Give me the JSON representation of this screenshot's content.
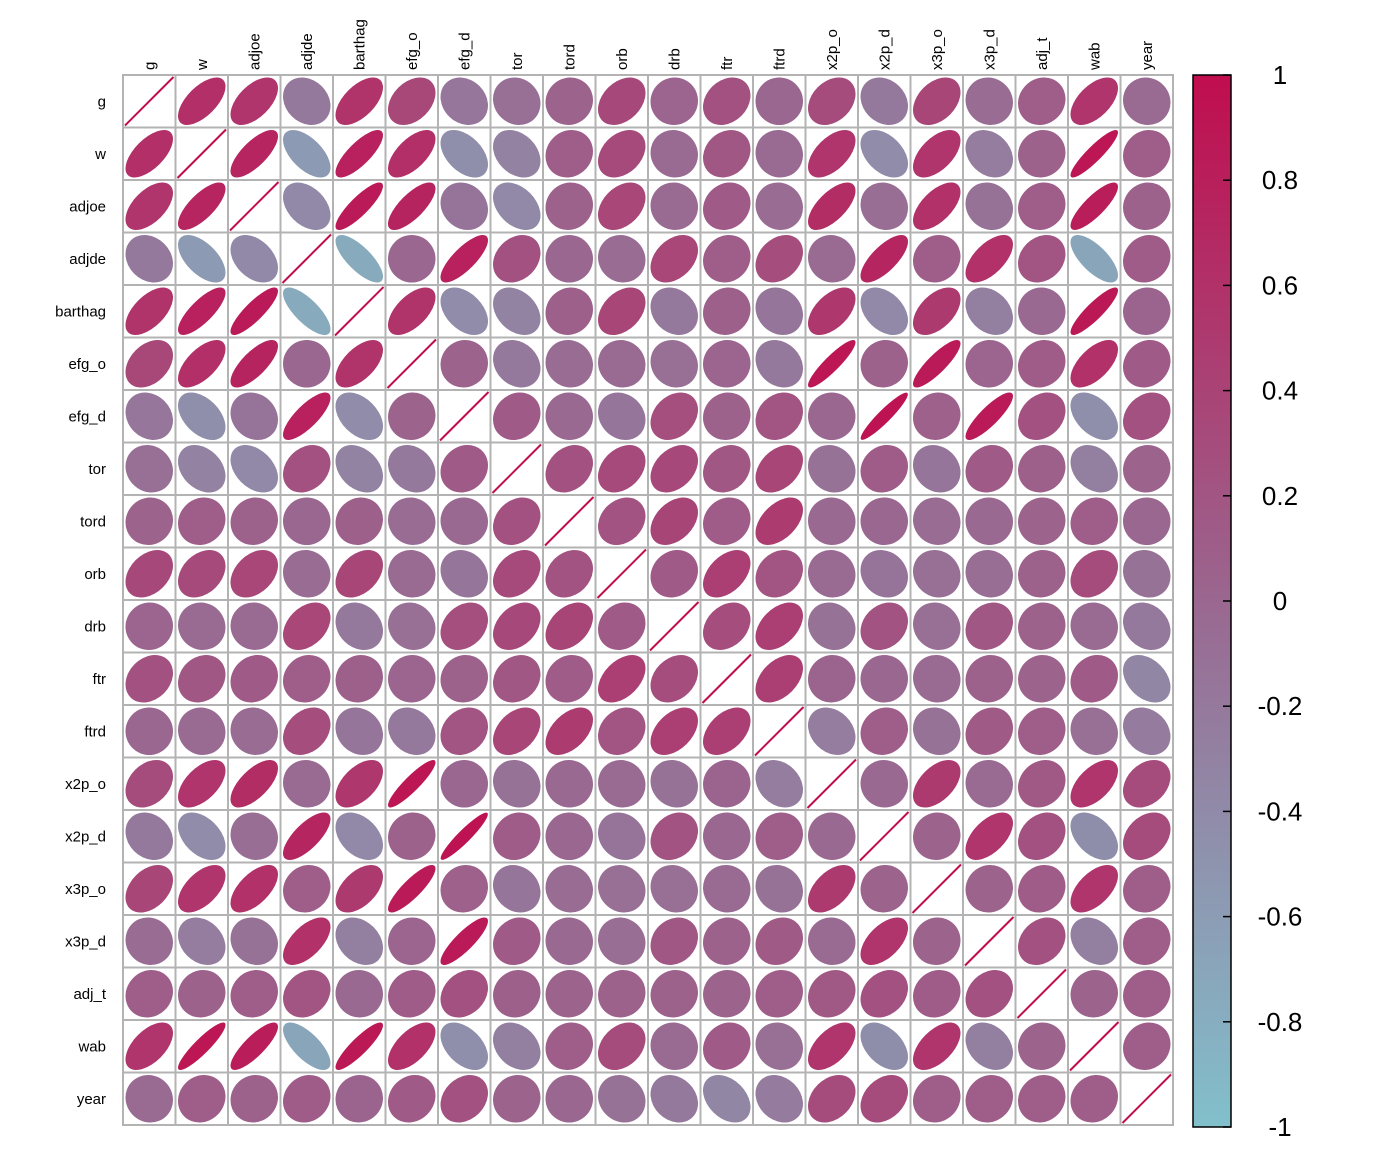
{
  "chart_data": {
    "type": "heatmap",
    "title": "",
    "variables": [
      "g",
      "w",
      "adjoe",
      "adjde",
      "barthag",
      "efg_o",
      "efg_d",
      "tor",
      "tord",
      "orb",
      "drb",
      "ftr",
      "ftrd",
      "x2p_o",
      "x2p_d",
      "x3p_o",
      "x3p_d",
      "adj_t",
      "wab",
      "year"
    ],
    "matrix": [
      [
        1,
        0.62,
        0.55,
        -0.2,
        0.58,
        0.35,
        -0.18,
        -0.1,
        0.05,
        0.34,
        0.02,
        0.24,
        0.0,
        0.3,
        -0.2,
        0.37,
        -0.06,
        0.1,
        0.55,
        -0.05
      ],
      [
        0.62,
        1,
        0.73,
        -0.58,
        0.78,
        0.62,
        -0.45,
        -0.3,
        0.1,
        0.32,
        -0.05,
        0.18,
        -0.05,
        0.55,
        -0.42,
        0.55,
        -0.25,
        0.06,
        0.9,
        0.1
      ],
      [
        0.55,
        0.73,
        1,
        -0.38,
        0.85,
        0.74,
        -0.15,
        -0.38,
        0.06,
        0.36,
        -0.03,
        0.14,
        -0.06,
        0.65,
        -0.08,
        0.6,
        -0.12,
        0.1,
        0.82,
        0.06
      ],
      [
        -0.2,
        -0.58,
        -0.38,
        1,
        -0.75,
        0.0,
        0.78,
        0.24,
        0.0,
        -0.06,
        0.36,
        0.1,
        0.28,
        -0.05,
        0.72,
        0.1,
        0.6,
        0.2,
        -0.7,
        0.12
      ],
      [
        0.58,
        0.78,
        0.85,
        -0.75,
        1,
        0.58,
        -0.42,
        -0.32,
        0.08,
        0.37,
        -0.2,
        0.08,
        -0.16,
        0.52,
        -0.38,
        0.5,
        -0.28,
        -0.02,
        0.88,
        0.03
      ],
      [
        0.35,
        0.62,
        0.74,
        0.0,
        0.58,
        1,
        0.04,
        -0.2,
        -0.06,
        -0.05,
        -0.1,
        0.02,
        -0.2,
        0.9,
        0.06,
        0.85,
        0.02,
        0.12,
        0.6,
        0.14
      ],
      [
        -0.18,
        -0.45,
        -0.15,
        0.78,
        -0.42,
        0.04,
        1,
        0.14,
        -0.02,
        -0.16,
        0.27,
        0.06,
        0.2,
        0.0,
        0.93,
        0.07,
        0.85,
        0.24,
        -0.45,
        0.24
      ],
      [
        -0.1,
        -0.3,
        -0.38,
        0.24,
        -0.32,
        -0.2,
        0.14,
        1,
        0.24,
        0.32,
        0.34,
        0.18,
        0.37,
        -0.12,
        0.12,
        -0.16,
        0.14,
        0.08,
        -0.28,
        0.05
      ],
      [
        0.05,
        0.1,
        0.06,
        0.0,
        0.08,
        -0.06,
        -0.02,
        0.24,
        1,
        0.22,
        0.38,
        0.12,
        0.48,
        -0.02,
        0.0,
        -0.06,
        -0.02,
        0.04,
        0.1,
        0.0
      ],
      [
        0.34,
        0.32,
        0.36,
        -0.06,
        0.37,
        -0.05,
        -0.16,
        0.32,
        0.22,
        1,
        0.14,
        0.44,
        0.2,
        -0.05,
        -0.15,
        -0.1,
        -0.08,
        0.06,
        0.3,
        -0.12
      ],
      [
        0.02,
        -0.05,
        -0.03,
        0.36,
        -0.2,
        -0.1,
        0.27,
        0.34,
        0.38,
        0.14,
        1,
        0.28,
        0.44,
        -0.12,
        0.22,
        -0.1,
        0.18,
        0.06,
        -0.05,
        -0.2
      ],
      [
        0.24,
        0.18,
        0.14,
        0.1,
        0.08,
        0.02,
        0.06,
        0.18,
        0.12,
        0.44,
        0.28,
        1,
        0.44,
        0.03,
        0.0,
        -0.04,
        0.06,
        0.04,
        0.14,
        -0.35
      ],
      [
        0.0,
        -0.05,
        -0.06,
        0.28,
        -0.16,
        -0.2,
        0.2,
        0.37,
        0.48,
        0.2,
        0.44,
        0.44,
        1,
        -0.25,
        0.1,
        -0.12,
        0.15,
        0.1,
        -0.1,
        -0.22
      ],
      [
        0.3,
        0.55,
        0.65,
        -0.05,
        0.52,
        0.9,
        0.0,
        -0.12,
        -0.02,
        -0.05,
        -0.12,
        0.03,
        -0.25,
        1,
        -0.02,
        0.5,
        -0.04,
        0.16,
        0.55,
        0.3
      ],
      [
        -0.2,
        -0.42,
        -0.08,
        0.72,
        -0.38,
        0.06,
        0.93,
        0.12,
        0.0,
        -0.15,
        0.22,
        0.0,
        0.1,
        -0.02,
        1,
        0.04,
        0.55,
        0.24,
        -0.44,
        0.3
      ],
      [
        0.37,
        0.55,
        0.6,
        0.1,
        0.5,
        0.85,
        0.07,
        -0.16,
        -0.06,
        -0.1,
        -0.1,
        -0.04,
        -0.12,
        0.5,
        0.04,
        1,
        0.04,
        0.12,
        0.55,
        0.1
      ],
      [
        -0.06,
        -0.25,
        -0.12,
        0.6,
        -0.28,
        0.02,
        0.85,
        0.14,
        -0.02,
        -0.08,
        0.18,
        0.06,
        0.15,
        -0.04,
        0.55,
        0.04,
        1,
        0.24,
        -0.28,
        0.1
      ],
      [
        0.1,
        0.06,
        0.1,
        0.2,
        -0.02,
        0.12,
        0.24,
        0.08,
        0.04,
        0.06,
        0.06,
        0.04,
        0.1,
        0.16,
        0.24,
        0.12,
        0.24,
        1,
        0.04,
        0.1
      ],
      [
        0.55,
        0.9,
        0.82,
        -0.7,
        0.88,
        0.6,
        -0.45,
        -0.28,
        0.1,
        0.3,
        -0.05,
        0.14,
        -0.1,
        0.55,
        -0.44,
        0.55,
        -0.28,
        0.04,
        1,
        0.1
      ],
      [
        -0.05,
        0.1,
        0.06,
        0.12,
        0.03,
        0.14,
        0.24,
        0.05,
        0.0,
        -0.12,
        -0.2,
        -0.35,
        -0.22,
        0.3,
        0.3,
        0.1,
        0.1,
        0.1,
        0.1,
        1
      ]
    ],
    "colorbar": {
      "range": [
        -1,
        1
      ],
      "ticks": [
        "1",
        "0.8",
        "0.6",
        "0.4",
        "0.2",
        "0",
        "-0.2",
        "-0.4",
        "-0.6",
        "-0.8",
        "-1"
      ],
      "low_color": "#82c0cc",
      "mid_color": "#9a6790",
      "high_color": "#c00d4e"
    },
    "grid": true,
    "legend_position": "right"
  }
}
